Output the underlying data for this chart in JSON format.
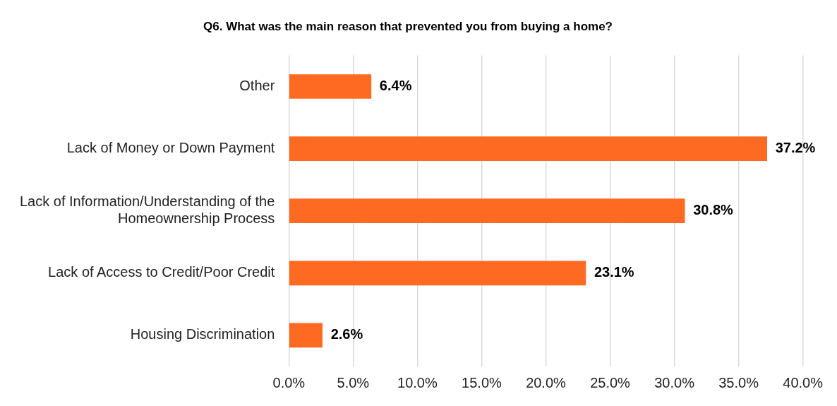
{
  "chart_data": {
    "type": "bar",
    "orientation": "horizontal",
    "title": "Q6. What was the main reason that prevented you from buying a home?",
    "categories": [
      "Other",
      "Lack of Money or Down Payment",
      "Lack of Information/Understanding of the Homeownership Process",
      "Lack of Access to Credit/Poor Credit",
      "Housing Discrimination"
    ],
    "values": [
      6.4,
      37.2,
      30.8,
      23.1,
      2.6
    ],
    "value_labels": [
      "6.4%",
      "37.2%",
      "30.8%",
      "23.1%",
      "2.6%"
    ],
    "color": "#ff6a22",
    "xlim": [
      0,
      40
    ],
    "xticks": [
      {
        "value": 0,
        "label": "0.0%"
      },
      {
        "value": 5,
        "label": "5.0%"
      },
      {
        "value": 10,
        "label": "10.0%"
      },
      {
        "value": 15,
        "label": "15.0%"
      },
      {
        "value": 20,
        "label": "20.0%"
      },
      {
        "value": 25,
        "label": "25.0%"
      },
      {
        "value": 30,
        "label": "30.0%"
      },
      {
        "value": 35,
        "label": "35.0%"
      },
      {
        "value": 40,
        "label": "40.0%"
      }
    ],
    "grid": "x",
    "legend": false
  }
}
